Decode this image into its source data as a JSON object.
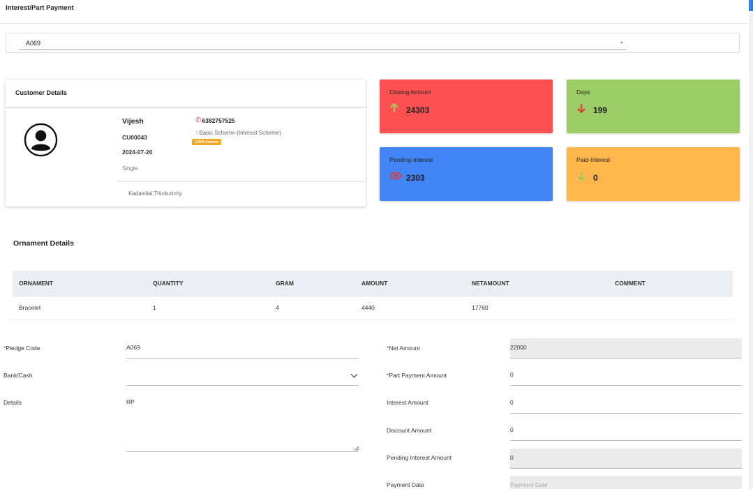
{
  "page": {
    "title": "Interest/Part Payment"
  },
  "pledge_select": {
    "value": "A069"
  },
  "customer": {
    "header": "Customer Details",
    "name": "Vijesh",
    "code": "CU00043",
    "date": "2024-07-20",
    "status": "Single",
    "phone": "6382757525",
    "scheme": "Basic Scheme-(Interest Scheme)",
    "interest_badge": "2.00% Interest",
    "address": "Kadaivilai,Thickurichy"
  },
  "stats": {
    "closing": {
      "label": "Closing Amount",
      "value": "24303",
      "icon": "arrow-up-icon",
      "color": "#fe5050"
    },
    "days": {
      "label": "Days",
      "value": "199",
      "icon": "arrow-down-icon",
      "color": "#9ccc65"
    },
    "pending": {
      "label": "Pending-Interest",
      "value": "2303",
      "icon": "eye-icon",
      "color": "#4285f4"
    },
    "paid": {
      "label": "Paid-Interest",
      "value": "0",
      "icon": "arrow-down-icon",
      "color": "#ffb74d"
    }
  },
  "ornaments": {
    "title": "Ornament Details",
    "columns": [
      "ORNAMENT",
      "QUANTITY",
      "GRAM",
      "AMOUNT",
      "NETAMOUNT",
      "COMMENT"
    ],
    "rows": [
      [
        "Bracelet",
        "1",
        "4",
        "4440",
        "17760",
        ""
      ]
    ]
  },
  "form": {
    "pledge_code": {
      "label": "Pledge Code",
      "value": "A069"
    },
    "bank_cash": {
      "label": "Bank/Cash",
      "value": ""
    },
    "details": {
      "label": "Details",
      "value": "RP"
    },
    "net_amount": {
      "label": "Net Amount",
      "value": "22000"
    },
    "part_payment": {
      "label": "Part Payment Amount",
      "value": "0"
    },
    "interest_amount": {
      "label": "Interest Amount",
      "value": "0"
    },
    "discount_amount": {
      "label": "Discount Amount",
      "value": "0"
    },
    "pending_interest": {
      "label": "Pending Interest Amount",
      "value": "0"
    },
    "payment_date": {
      "label": "Payment Date",
      "placeholder": "Payment Date"
    }
  }
}
